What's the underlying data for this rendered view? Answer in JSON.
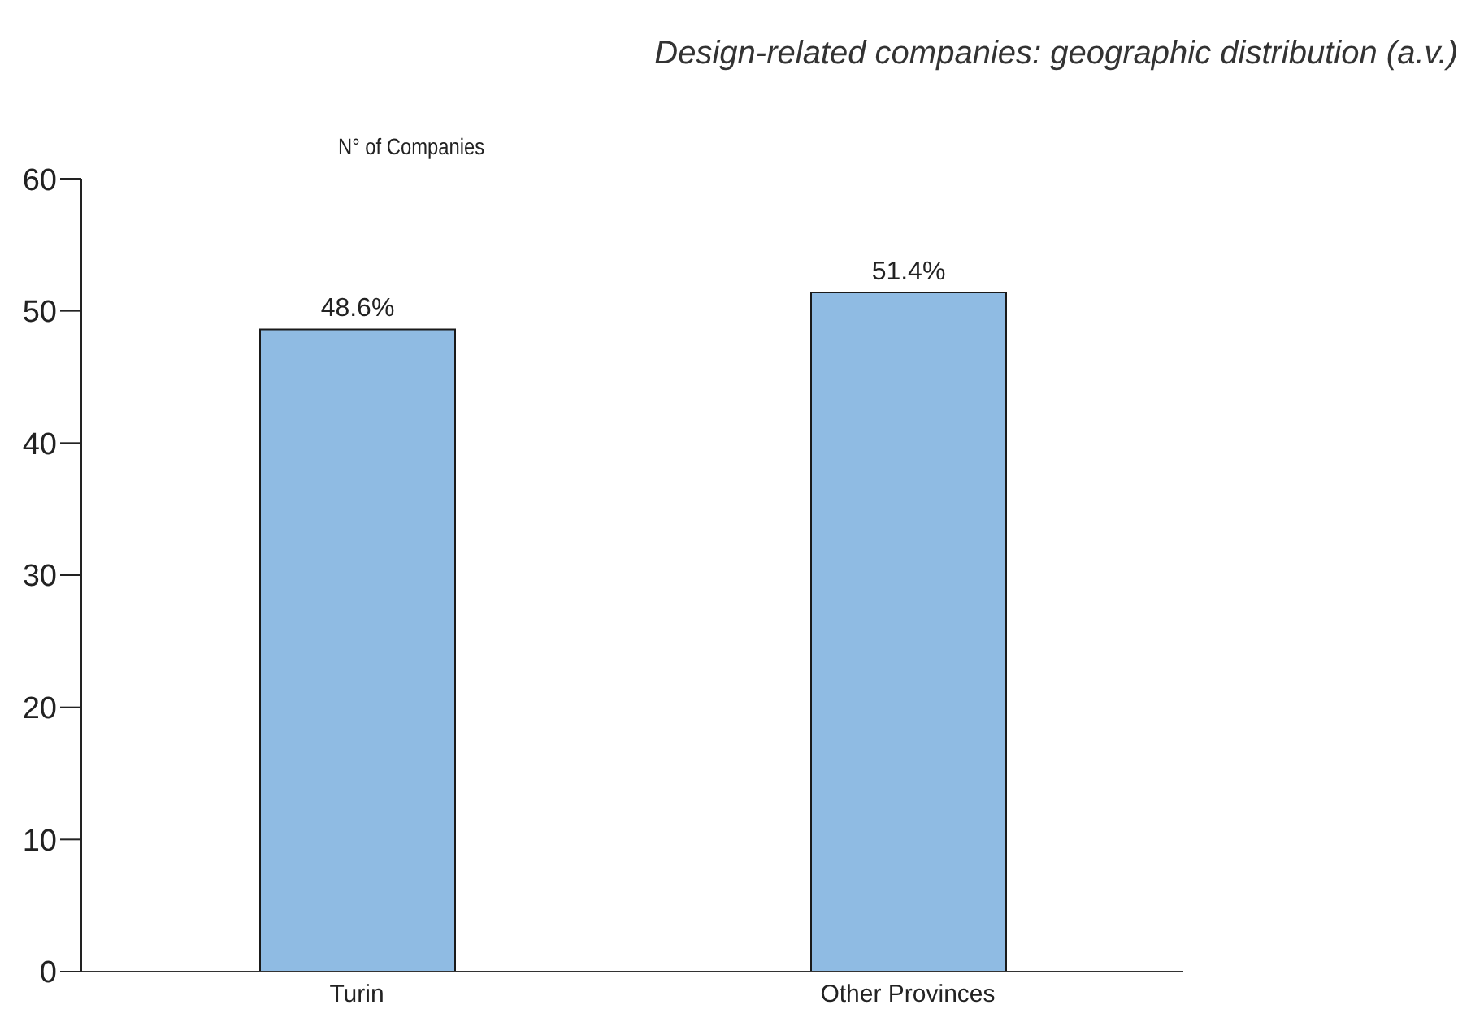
{
  "chart_data": {
    "type": "bar",
    "title": "Design-related companies: geographic distribution (a.v.)",
    "ylabel": "N° of Companies",
    "categories": [
      "Turin",
      "Other Provinces"
    ],
    "values": [
      48.6,
      51.4
    ],
    "value_labels": [
      "48.6%",
      "51.4%"
    ],
    "color": "#8fbbe3",
    "ylim": [
      0,
      60
    ],
    "yticks": [
      0,
      10,
      20,
      30,
      40,
      50,
      60
    ],
    "grid": false,
    "legend": false
  }
}
